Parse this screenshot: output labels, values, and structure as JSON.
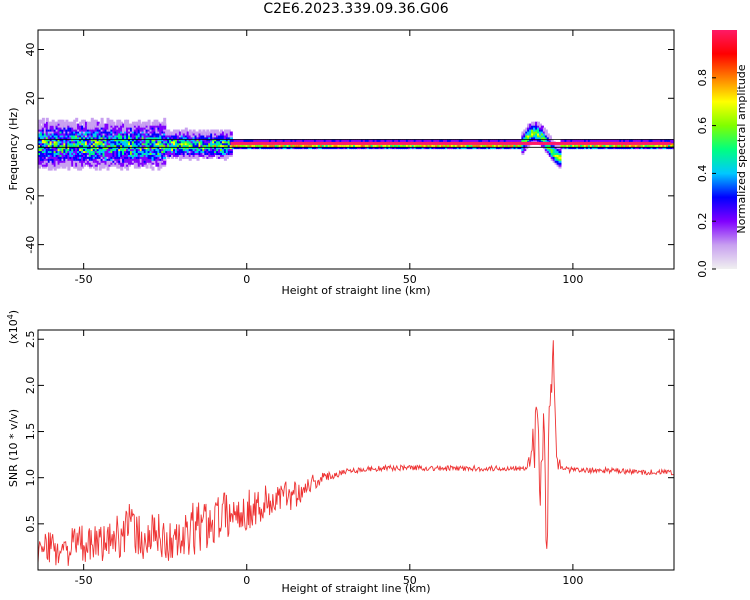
{
  "title": "C2E6.2023.339.09.36.G06",
  "chart_data": [
    {
      "type": "heatmap",
      "xlabel": "Height of straight line (km)",
      "ylabel": "Frequency (Hz)",
      "xlim": [
        -64,
        131
      ],
      "ylim": [
        -50,
        48
      ],
      "xticks": [
        "-50",
        "0",
        "50",
        "100"
      ],
      "xtick_values": [
        -50,
        0,
        50,
        100
      ],
      "yticks": [
        "40",
        "20",
        "0",
        "-20",
        "-40"
      ],
      "ytick_values": [
        40,
        20,
        0,
        -20,
        -40
      ],
      "ridge_frequency_hz": 1.5,
      "colorbar": {
        "label": "Normalized spectral amplitude",
        "range": [
          0,
          1
        ],
        "ticks": [
          "0.0",
          "0.2",
          "0.4",
          "0.6",
          "0.8"
        ],
        "tick_values": [
          0.0,
          0.2,
          0.4,
          0.6,
          0.8
        ],
        "colors": [
          "#f0f0f0",
          "#c8a0f0",
          "#8000ff",
          "#0000ff",
          "#00c8ff",
          "#00ff80",
          "#80ff00",
          "#ffff00",
          "#ff8000",
          "#ff0000",
          "#ff1a66"
        ]
      }
    },
    {
      "type": "line",
      "xlabel": "Height of straight line (km)",
      "ylabel": "SNR (10 * v/v)",
      "multiplier": "(x10",
      "multiplier_exp": "4",
      "multiplier_close": ")",
      "xlim": [
        -64,
        131
      ],
      "ylim": [
        0,
        2.6
      ],
      "xticks": [
        "-50",
        "0",
        "50",
        "100"
      ],
      "xtick_values": [
        -50,
        0,
        50,
        100
      ],
      "yticks": [
        "2.5",
        "2.0",
        "1.5",
        "1.0",
        "0.5"
      ],
      "ytick_values": [
        2.5,
        2.0,
        1.5,
        1.0,
        0.5
      ],
      "color": "#ee3333",
      "x": [
        -64,
        -60,
        -56,
        -52,
        -48,
        -44,
        -40,
        -36,
        -32,
        -28,
        -24,
        -20,
        -16,
        -12,
        -8,
        -4,
        0,
        4,
        8,
        12,
        16,
        20,
        24,
        30,
        36,
        40,
        50,
        60,
        70,
        80,
        86,
        88,
        89,
        90,
        91,
        92,
        93,
        94,
        95,
        97,
        100,
        110,
        120,
        131
      ],
      "y": [
        0.2,
        0.25,
        0.2,
        0.3,
        0.25,
        0.3,
        0.35,
        0.5,
        0.3,
        0.4,
        0.3,
        0.3,
        0.45,
        0.5,
        0.6,
        0.6,
        0.65,
        0.7,
        0.75,
        0.8,
        0.85,
        0.95,
        1.0,
        1.07,
        1.09,
        1.1,
        1.11,
        1.1,
        1.1,
        1.1,
        1.12,
        1.3,
        1.8,
        0.5,
        1.6,
        0.4,
        1.7,
        2.55,
        1.2,
        1.1,
        1.08,
        1.08,
        1.06,
        1.06
      ],
      "noise_amplitude": [
        0.15,
        0.18,
        0.18,
        0.2,
        0.2,
        0.22,
        0.25,
        0.25,
        0.25,
        0.25,
        0.22,
        0.3,
        0.3,
        0.3,
        0.25,
        0.25,
        0.22,
        0.22,
        0.2,
        0.18,
        0.15,
        0.1,
        0.06,
        0.03,
        0.03,
        0.03,
        0.03,
        0.03,
        0.03,
        0.03,
        0.04,
        0.3,
        0.5,
        0.4,
        0.5,
        0.4,
        0.4,
        0.2,
        0.1,
        0.04,
        0.03,
        0.03,
        0.03,
        0.03
      ]
    }
  ]
}
